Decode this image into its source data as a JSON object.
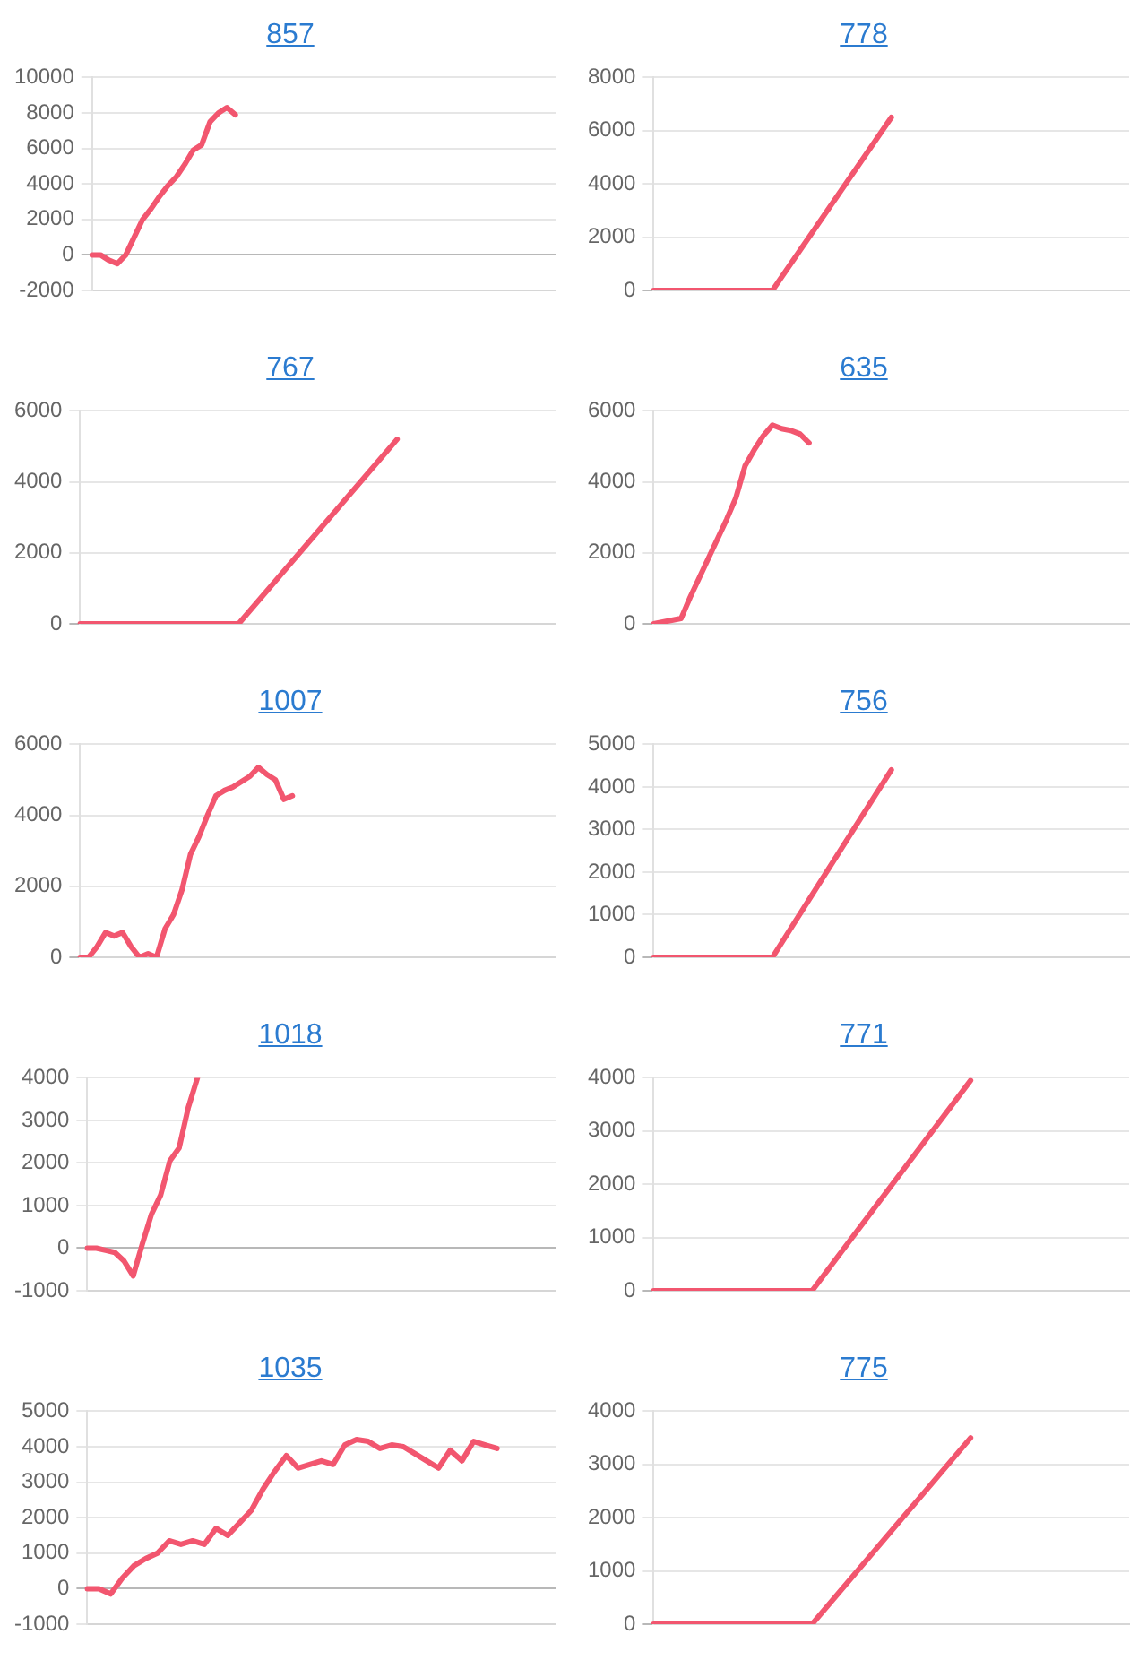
{
  "chart_data": [
    {
      "type": "line",
      "title": "857",
      "categories": [
        null,
        null,
        null,
        null,
        null,
        null,
        null,
        null,
        null,
        null,
        null,
        null,
        null,
        null,
        null,
        null,
        null,
        null,
        null,
        null,
        null,
        null,
        null,
        null,
        null,
        null,
        null,
        null,
        null,
        null,
        null,
        null,
        null,
        null,
        null,
        null,
        null,
        null,
        null,
        null,
        null,
        null,
        null,
        null,
        null,
        null,
        null,
        null,
        null,
        null,
        null,
        null,
        null,
        null,
        null,
        null
      ],
      "values": [
        0,
        0,
        -300,
        -500,
        0,
        1000,
        2000,
        2600,
        3300,
        3900,
        4400,
        5100,
        5900,
        6200,
        7500,
        8000,
        8300,
        7900,
        null,
        null,
        null,
        null,
        null,
        null,
        null,
        null,
        null,
        null,
        null,
        null,
        null,
        null,
        null,
        null,
        null,
        null,
        null,
        null,
        null,
        null,
        null,
        null,
        null,
        null,
        null,
        null,
        null,
        null,
        null,
        null,
        null,
        null,
        null,
        null,
        null,
        null
      ],
      "color": "#f2566f",
      "ylim": [
        -2000,
        10000
      ],
      "yticks": [
        -2000,
        0,
        2000,
        4000,
        6000,
        8000,
        10000
      ],
      "grid": "y",
      "marker": "none",
      "tick_labels": "y"
    },
    {
      "type": "line",
      "title": "778",
      "categories": [
        null,
        null,
        null,
        null,
        null
      ],
      "values": [
        0,
        0,
        6500,
        null,
        null
      ],
      "color": "#f2566f",
      "ylim": [
        0,
        8000
      ],
      "yticks": [
        0,
        2000,
        4000,
        6000,
        8000
      ],
      "grid": "y",
      "marker": "none",
      "tick_labels": "y"
    },
    {
      "type": "line",
      "title": "767",
      "categories": [
        null,
        null,
        null,
        null
      ],
      "values": [
        0,
        0,
        5200,
        null
      ],
      "color": "#f2566f",
      "ylim": [
        0,
        6000
      ],
      "yticks": [
        0,
        2000,
        4000,
        6000
      ],
      "grid": "y",
      "marker": "none",
      "tick_labels": "y"
    },
    {
      "type": "line",
      "title": "635",
      "categories": [
        null,
        null,
        null,
        null,
        null,
        null,
        null,
        null,
        null,
        null,
        null,
        null,
        null,
        null,
        null,
        null,
        null,
        null,
        null,
        null,
        null,
        null,
        null,
        null,
        null,
        null,
        null,
        null,
        null,
        null,
        null,
        null,
        null,
        null,
        null,
        null,
        null,
        null,
        null,
        null,
        null,
        null,
        null,
        null,
        null,
        null,
        null,
        null,
        null,
        null,
        null,
        null,
        null
      ],
      "values": [
        0,
        50,
        100,
        150,
        750,
        1300,
        1850,
        2400,
        2950,
        3550,
        4450,
        4900,
        5300,
        5600,
        5500,
        5450,
        5350,
        5100,
        null,
        null,
        null,
        null,
        null,
        null,
        null,
        null,
        null,
        null,
        null,
        null,
        null,
        null,
        null,
        null,
        null,
        null,
        null,
        null,
        null,
        null,
        null,
        null,
        null,
        null,
        null,
        null,
        null,
        null,
        null,
        null,
        null,
        null,
        null
      ],
      "color": "#f2566f",
      "ylim": [
        0,
        6000
      ],
      "yticks": [
        0,
        2000,
        4000,
        6000
      ],
      "grid": "y",
      "marker": "none",
      "tick_labels": "y"
    },
    {
      "type": "line",
      "title": "1007",
      "categories": [
        null,
        null,
        null,
        null,
        null,
        null,
        null,
        null,
        null,
        null,
        null,
        null,
        null,
        null,
        null,
        null,
        null,
        null,
        null,
        null,
        null,
        null,
        null,
        null,
        null,
        null,
        null,
        null,
        null,
        null,
        null,
        null,
        null,
        null,
        null,
        null,
        null,
        null,
        null,
        null,
        null,
        null,
        null,
        null,
        null,
        null,
        null,
        null,
        null,
        null,
        null,
        null,
        null,
        null,
        null,
        null,
        null
      ],
      "values": [
        0,
        0,
        300,
        700,
        600,
        700,
        300,
        0,
        100,
        0,
        800,
        1200,
        1900,
        2900,
        3400,
        4000,
        4550,
        4700,
        4800,
        4950,
        5100,
        5350,
        5150,
        5000,
        4450,
        4550,
        null,
        null,
        null,
        null,
        null,
        null,
        null,
        null,
        null,
        null,
        null,
        null,
        null,
        null,
        null,
        null,
        null,
        null,
        null,
        null,
        null,
        null,
        null,
        null,
        null,
        null,
        null,
        null,
        null,
        null,
        null
      ],
      "color": "#f2566f",
      "ylim": [
        0,
        6000
      ],
      "yticks": [
        0,
        2000,
        4000,
        6000
      ],
      "grid": "y",
      "marker": "none",
      "tick_labels": "y"
    },
    {
      "type": "line",
      "title": "756",
      "categories": [
        null,
        null,
        null,
        null,
        null
      ],
      "values": [
        0,
        0,
        4400,
        null,
        null
      ],
      "color": "#f2566f",
      "ylim": [
        0,
        5000
      ],
      "yticks": [
        0,
        1000,
        2000,
        3000,
        4000,
        5000
      ],
      "grid": "y",
      "marker": "none",
      "tick_labels": "y"
    },
    {
      "type": "line",
      "title": "1018",
      "categories": [
        null,
        null,
        null,
        null,
        null,
        null,
        null,
        null,
        null,
        null,
        null,
        null,
        null,
        null,
        null,
        null,
        null,
        null,
        null,
        null,
        null,
        null,
        null,
        null,
        null,
        null,
        null,
        null,
        null,
        null,
        null,
        null,
        null,
        null,
        null,
        null,
        null,
        null,
        null,
        null,
        null,
        null,
        null,
        null,
        null,
        null,
        null,
        null,
        null,
        null,
        null,
        null
      ],
      "values": [
        0,
        0,
        -50,
        -100,
        -300,
        -650,
        100,
        800,
        1250,
        2050,
        2350,
        3300,
        4000,
        null,
        null,
        null,
        null,
        null,
        null,
        null,
        null,
        null,
        null,
        null,
        null,
        null,
        null,
        null,
        null,
        null,
        null,
        null,
        null,
        null,
        null,
        null,
        null,
        null,
        null,
        null,
        null,
        null,
        null,
        null,
        null,
        null,
        null,
        null,
        null,
        null,
        null,
        null
      ],
      "color": "#f2566f",
      "ylim": [
        -1000,
        4000
      ],
      "yticks": [
        -1000,
        0,
        1000,
        2000,
        3000,
        4000
      ],
      "grid": "y",
      "marker": "none",
      "tick_labels": "y"
    },
    {
      "type": "line",
      "title": "771",
      "categories": [
        null,
        null,
        null,
        null
      ],
      "values": [
        0,
        0,
        3950,
        null
      ],
      "color": "#f2566f",
      "ylim": [
        0,
        4000
      ],
      "yticks": [
        0,
        1000,
        2000,
        3000,
        4000
      ],
      "grid": "y",
      "marker": "none",
      "tick_labels": "y"
    },
    {
      "type": "line",
      "title": "1035",
      "categories": [
        null,
        null,
        null,
        null,
        null,
        null,
        null,
        null,
        null,
        null,
        null,
        null,
        null,
        null,
        null,
        null,
        null,
        null,
        null,
        null,
        null,
        null,
        null,
        null,
        null,
        null,
        null,
        null,
        null,
        null,
        null,
        null,
        null,
        null,
        null,
        null,
        null,
        null,
        null,
        null,
        null
      ],
      "values": [
        0,
        0,
        -150,
        300,
        650,
        850,
        1000,
        1350,
        1250,
        1350,
        1250,
        1700,
        1500,
        1850,
        2200,
        2800,
        3300,
        3750,
        3400,
        3500,
        3600,
        3500,
        4050,
        4200,
        4150,
        3950,
        4050,
        4000,
        3800,
        3600,
        3400,
        3900,
        3600,
        4150,
        4050,
        3950,
        null,
        null,
        null,
        null,
        null
      ],
      "color": "#f2566f",
      "ylim": [
        -1000,
        5000
      ],
      "yticks": [
        -1000,
        0,
        1000,
        2000,
        3000,
        4000,
        5000
      ],
      "grid": "y",
      "marker": "none",
      "tick_labels": "y"
    },
    {
      "type": "line",
      "title": "775",
      "categories": [
        null,
        null,
        null,
        null
      ],
      "values": [
        0,
        0,
        3500,
        null
      ],
      "color": "#f2566f",
      "ylim": [
        0,
        4000
      ],
      "yticks": [
        0,
        1000,
        2000,
        3000,
        4000
      ],
      "grid": "y",
      "marker": "none",
      "tick_labels": "y"
    }
  ]
}
